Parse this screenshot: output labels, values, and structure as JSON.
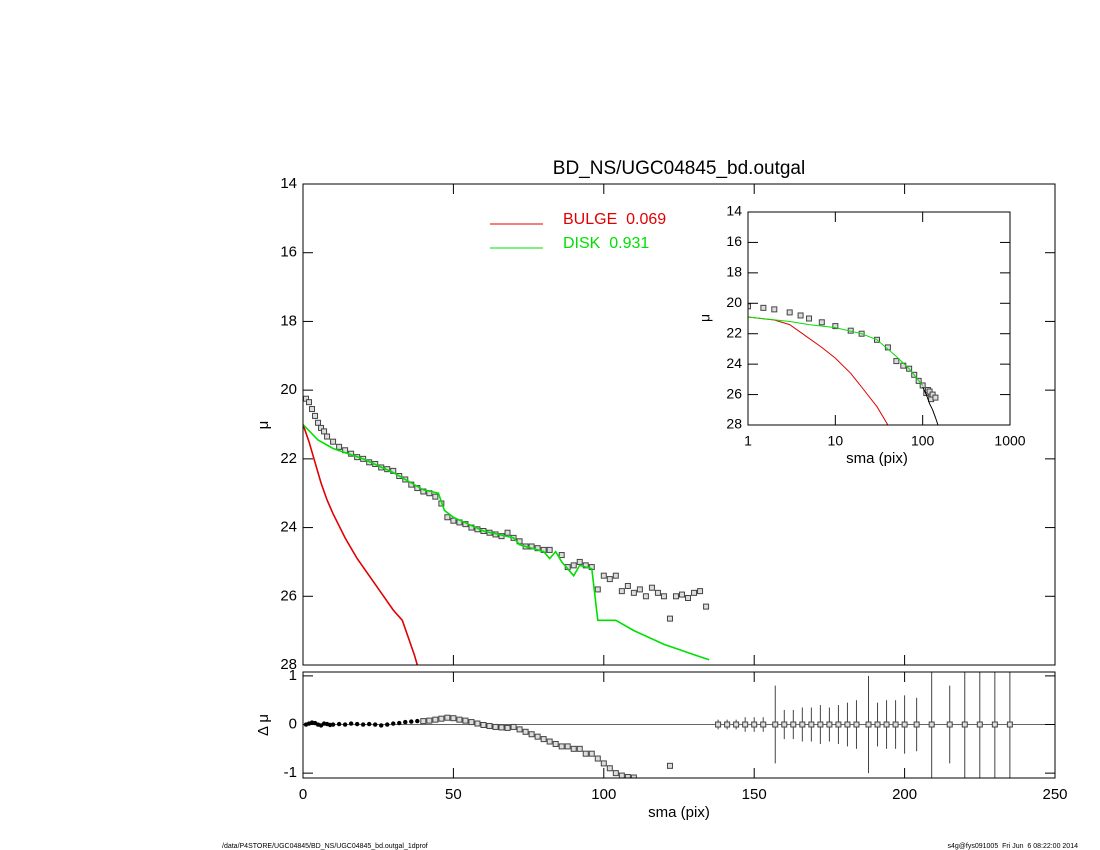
{
  "chart_data": [
    {
      "type": "line",
      "title": "BD_NS/UGC04845_bd.outgal",
      "ylabel": "μ",
      "xlim": [
        0,
        250
      ],
      "ylim": [
        28,
        14
      ],
      "yticks": [
        14,
        16,
        18,
        20,
        22,
        24,
        26,
        28
      ],
      "series": [
        {
          "color": "#555555",
          "marker": "square",
          "x": [
            1,
            2,
            3,
            4,
            5,
            6,
            7,
            8,
            10,
            12,
            14,
            16,
            18,
            20,
            22,
            24,
            26,
            28,
            30,
            32,
            34,
            36,
            38,
            40,
            42,
            44,
            46,
            48,
            50,
            52,
            54,
            56,
            58,
            60,
            62,
            64,
            66,
            68,
            70,
            72,
            74,
            76,
            78,
            80,
            82,
            86,
            88,
            90,
            92,
            94,
            96,
            98,
            100,
            102,
            104,
            106,
            108,
            110,
            112,
            114,
            116,
            118,
            120,
            122,
            124,
            126,
            128,
            130,
            132,
            134
          ],
          "values": [
            20.25,
            20.35,
            20.55,
            20.75,
            20.95,
            21.1,
            21.2,
            21.35,
            21.5,
            21.65,
            21.75,
            21.85,
            21.95,
            22.0,
            22.1,
            22.15,
            22.25,
            22.3,
            22.35,
            22.5,
            22.6,
            22.75,
            22.85,
            22.95,
            23.0,
            23.1,
            23.3,
            23.7,
            23.8,
            23.85,
            23.9,
            24.0,
            24.05,
            24.1,
            24.15,
            24.2,
            24.25,
            24.15,
            24.3,
            24.4,
            24.55,
            24.55,
            24.6,
            24.65,
            24.65,
            24.8,
            25.15,
            25.1,
            25.0,
            25.1,
            25.15,
            25.8,
            25.4,
            25.5,
            25.4,
            25.85,
            25.7,
            25.9,
            25.8,
            26.0,
            25.75,
            25.9,
            26.0,
            26.65,
            26.0,
            25.95,
            26.05,
            25.9,
            25.85,
            26.3
          ]
        },
        {
          "name": "BULGE  0.069",
          "color": "#e00000",
          "x": [
            0,
            2,
            4,
            6,
            8,
            10,
            14,
            18,
            22,
            26,
            30,
            33,
            35,
            37,
            38
          ],
          "values": [
            21.0,
            21.5,
            22.1,
            22.7,
            23.2,
            23.6,
            24.3,
            24.9,
            25.4,
            25.9,
            26.4,
            26.7,
            27.2,
            27.7,
            28.0
          ]
        },
        {
          "name": "DISK  0.931",
          "color": "#00e000",
          "x": [
            0,
            5,
            10,
            20,
            30,
            40,
            45,
            47,
            50,
            60,
            70,
            72,
            80,
            82,
            84,
            86,
            88,
            90,
            92,
            96,
            98,
            104,
            110,
            120,
            125,
            130,
            135
          ],
          "values": [
            21.0,
            21.45,
            21.7,
            22.0,
            22.4,
            22.9,
            23.0,
            23.5,
            23.7,
            24.1,
            24.3,
            24.5,
            24.7,
            24.9,
            24.7,
            25.0,
            25.2,
            25.4,
            25.1,
            25.2,
            26.7,
            26.7,
            27.0,
            27.4,
            27.55,
            27.7,
            27.85
          ]
        }
      ]
    },
    {
      "type": "line",
      "log_x": true,
      "xlabel": "sma (pix)",
      "ylabel": "μ",
      "xlim": [
        1,
        1000
      ],
      "xticks": [
        1,
        10,
        100,
        1000
      ],
      "ylim": [
        28,
        14
      ],
      "yticks": [
        14,
        16,
        18,
        20,
        22,
        24,
        26,
        28
      ],
      "series": [
        {
          "color": "#555555",
          "marker": "square",
          "x": [
            1,
            1.5,
            2,
            3,
            4,
            5,
            7,
            10,
            15,
            20,
            30,
            40,
            50,
            60,
            70,
            80,
            90,
            100,
            110,
            115,
            120,
            125,
            130,
            140
          ],
          "values": [
            20.2,
            20.3,
            20.4,
            20.6,
            20.8,
            21.0,
            21.25,
            21.5,
            21.8,
            22.0,
            22.4,
            22.9,
            23.8,
            24.1,
            24.3,
            24.7,
            25.1,
            25.4,
            25.9,
            25.7,
            25.8,
            26.3,
            26.0,
            26.2
          ]
        },
        {
          "color": "#e00000",
          "x": [
            1,
            2,
            3,
            5,
            7,
            10,
            15,
            20,
            30,
            40
          ],
          "values": [
            20.9,
            21.1,
            21.4,
            22.3,
            22.9,
            23.6,
            24.6,
            25.5,
            26.8,
            28.0
          ]
        },
        {
          "color": "#00e000",
          "x": [
            1,
            3,
            5,
            10,
            20,
            30,
            50,
            70,
            100
          ],
          "values": [
            20.9,
            21.2,
            21.4,
            21.6,
            22.0,
            22.4,
            23.5,
            24.3,
            25.4
          ]
        },
        {
          "color": "#000000",
          "x": [
            100,
            110,
            120,
            130,
            140,
            150
          ],
          "values": [
            25.5,
            26.0,
            26.6,
            27.0,
            27.5,
            28.0
          ]
        }
      ]
    },
    {
      "type": "scatter",
      "xlabel": "sma (pix)",
      "ylabel": "Δ μ",
      "hline": 0,
      "xlim": [
        0,
        250
      ],
      "xticks": [
        0,
        50,
        100,
        150,
        200,
        250
      ],
      "ylim": [
        -1.1,
        1.08
      ],
      "yticks": [
        -1,
        0,
        1
      ],
      "series": [
        {
          "color": "#000000",
          "x": [
            1,
            2,
            3,
            4,
            5,
            6,
            7,
            8,
            9,
            10,
            12,
            14,
            16,
            18,
            20,
            22,
            24,
            26,
            28,
            30,
            32,
            34,
            36,
            38,
            40,
            42,
            44,
            46,
            48,
            50,
            52,
            54,
            56,
            58,
            60,
            62,
            64,
            66,
            68,
            70,
            72,
            74,
            76,
            78,
            80,
            82,
            84,
            86,
            88,
            90,
            92,
            94,
            96,
            98,
            100,
            102,
            104,
            106,
            108,
            110,
            122
          ],
          "values": [
            0.0,
            0.02,
            0.04,
            0.03,
            0.0,
            -0.02,
            0.02,
            0.01,
            -0.01,
            0.0,
            0.01,
            0.0,
            0.02,
            0.01,
            0.0,
            0.01,
            0.0,
            -0.02,
            0.0,
            0.02,
            0.03,
            0.05,
            0.06,
            0.07,
            0.07,
            0.08,
            0.1,
            0.12,
            0.14,
            0.13,
            0.1,
            0.08,
            0.05,
            0.02,
            -0.01,
            -0.03,
            -0.05,
            -0.06,
            -0.07,
            -0.05,
            -0.1,
            -0.15,
            -0.2,
            -0.25,
            -0.3,
            -0.35,
            -0.4,
            -0.45,
            -0.45,
            -0.5,
            -0.5,
            -0.6,
            -0.6,
            -0.7,
            -0.8,
            -0.9,
            -1.0,
            -1.05,
            -1.08,
            -1.09,
            -0.85
          ]
        },
        {
          "color": "#000000",
          "x": [
            138,
            141,
            144,
            147,
            150,
            153,
            157,
            160,
            163,
            166,
            169,
            172,
            175,
            178,
            181,
            184,
            188,
            191,
            194,
            197,
            200,
            204,
            209,
            215,
            220,
            225,
            230,
            235
          ],
          "values": [
            0,
            0,
            0,
            0,
            0,
            0,
            0,
            0,
            0,
            0,
            0,
            0,
            0,
            0,
            0,
            0,
            0,
            0,
            0,
            0,
            0,
            0,
            0,
            0,
            0,
            0,
            0,
            0
          ],
          "errors": [
            0.1,
            0.1,
            0.1,
            0.15,
            0.15,
            0.15,
            0.8,
            0.3,
            0.3,
            0.35,
            0.35,
            0.4,
            0.35,
            0.4,
            0.45,
            0.5,
            1.0,
            0.45,
            0.5,
            0.5,
            0.6,
            0.55,
            1.2,
            0.8,
            1.5,
            1.5,
            1.5,
            1.5
          ]
        }
      ]
    }
  ],
  "footer": {
    "left": "/data/P4STORE/UGC04845/BD_NS/UGC04845_bd.outgal_1dprof",
    "right": "s4g@fys091005  Fri Jun  6 08:22:00 2014"
  }
}
